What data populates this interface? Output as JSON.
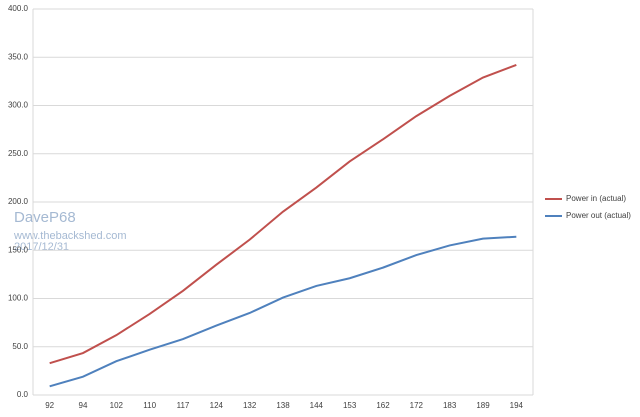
{
  "chart_data": {
    "type": "line",
    "categories": [
      "92",
      "94",
      "102",
      "110",
      "117",
      "124",
      "132",
      "138",
      "144",
      "153",
      "162",
      "172",
      "183",
      "189",
      "194"
    ],
    "series": [
      {
        "name": "Power in (actual)",
        "color": "#c0504d",
        "values": [
          33,
          43.5,
          62,
          84,
          108,
          135,
          161,
          190,
          215,
          242,
          265,
          289,
          310,
          329,
          342
        ]
      },
      {
        "name": "Power out (actual)",
        "color": "#4f81bd",
        "values": [
          9,
          19,
          35,
          47,
          58,
          72,
          85,
          101,
          113,
          121,
          132,
          145,
          155,
          162,
          164
        ]
      }
    ],
    "ylim": [
      0,
      400
    ],
    "yticks": [
      {
        "value": 0,
        "label": "0.0"
      },
      {
        "value": 50,
        "label": "50.0"
      },
      {
        "value": 100,
        "label": "100.0"
      },
      {
        "value": 150,
        "label": "150.0"
      },
      {
        "value": 200,
        "label": "200.0"
      },
      {
        "value": 250,
        "label": "250.0"
      },
      {
        "value": 300,
        "label": "300.0"
      },
      {
        "value": 350,
        "label": "350.0"
      },
      {
        "value": 400,
        "label": "400.0"
      }
    ],
    "grid": true,
    "legend": "right",
    "annotations": [
      "DaveP68",
      "www.thebackshed.com",
      "2017/12/31"
    ]
  }
}
